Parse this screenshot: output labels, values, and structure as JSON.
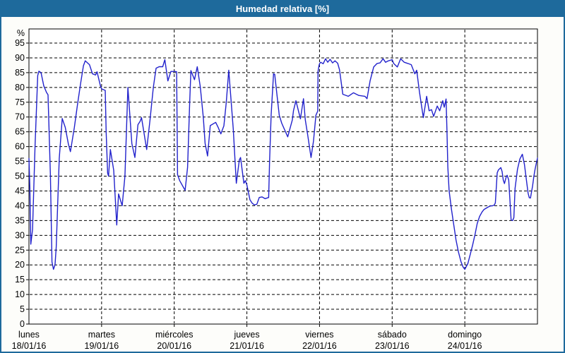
{
  "window": {
    "title": "Humedad relativa [%]"
  },
  "colors": {
    "titlebar_bg": "#1e6a9c",
    "titlebar_text": "#ffffff",
    "window_border": "#1e6a9c",
    "window_bg": "#fdfdfa",
    "plot_bg": "#ffffff",
    "frame": "#000000",
    "grid": "#000000",
    "series_line": "#2222cc",
    "label_text": "#000000"
  },
  "chart_data": {
    "type": "line",
    "title": "Humedad relativa [%]",
    "ylabel": "%",
    "ylim": [
      0,
      99.5
    ],
    "y_ticks": [
      0,
      5,
      10,
      15,
      20,
      25,
      30,
      35,
      40,
      45,
      50,
      55,
      60,
      65,
      70,
      75,
      80,
      85,
      90,
      95
    ],
    "xlim_hours": [
      0,
      168
    ],
    "x_unit": "hours over 7 days (hourly samples)",
    "grid": "dashed horizontal every 5%, dashed vertical at each day boundary",
    "legend": "none",
    "x_day_labels": [
      {
        "name": "lunes",
        "date": "18/01/16",
        "hour": 0
      },
      {
        "name": "martes",
        "date": "19/01/16",
        "hour": 24
      },
      {
        "name": "miércoles",
        "date": "20/01/16",
        "hour": 48
      },
      {
        "name": "jueves",
        "date": "21/01/16",
        "hour": 72
      },
      {
        "name": "viernes",
        "date": "22/01/16",
        "hour": 96
      },
      {
        "name": "sábado",
        "date": "23/01/16",
        "hour": 120
      },
      {
        "name": "domingo",
        "date": "24/01/16",
        "hour": 144
      }
    ],
    "series": [
      {
        "name": "Humedad relativa",
        "points": [
          [
            0,
            56
          ],
          [
            0.3,
            46
          ],
          [
            0.6,
            27
          ],
          [
            1.2,
            32
          ],
          [
            2,
            60
          ],
          [
            2.9,
            84
          ],
          [
            3.3,
            85.5
          ],
          [
            4,
            85
          ],
          [
            4.9,
            80.5
          ],
          [
            5.8,
            78.3
          ],
          [
            6.3,
            77.5
          ],
          [
            7.1,
            50
          ],
          [
            7.6,
            21
          ],
          [
            8.1,
            18.5
          ],
          [
            8.6,
            20
          ],
          [
            9,
            26
          ],
          [
            10,
            56
          ],
          [
            11,
            69.5
          ],
          [
            12,
            66.5
          ],
          [
            13,
            61
          ],
          [
            13.7,
            58.3
          ],
          [
            15,
            66.5
          ],
          [
            16,
            74
          ],
          [
            17,
            81
          ],
          [
            18,
            87.3
          ],
          [
            18.6,
            89
          ],
          [
            20,
            87.7
          ],
          [
            21,
            84.6
          ],
          [
            22,
            84.2
          ],
          [
            22.5,
            85.3
          ],
          [
            23.6,
            80.6
          ],
          [
            24,
            79.5
          ],
          [
            25.2,
            79
          ],
          [
            25.5,
            65
          ],
          [
            26,
            51
          ],
          [
            26.3,
            50
          ],
          [
            26.9,
            59
          ],
          [
            28,
            52
          ],
          [
            29,
            33.5
          ],
          [
            29.6,
            44
          ],
          [
            30.2,
            42
          ],
          [
            30.8,
            40
          ],
          [
            31.7,
            50
          ],
          [
            32.7,
            80
          ],
          [
            34,
            61
          ],
          [
            35,
            56.3
          ],
          [
            36,
            67.4
          ],
          [
            36.7,
            68.5
          ],
          [
            37.2,
            69.8
          ],
          [
            38.9,
            59
          ],
          [
            40,
            69
          ],
          [
            41.1,
            80
          ],
          [
            42,
            86.5
          ],
          [
            43,
            87
          ],
          [
            44.2,
            87
          ],
          [
            44.9,
            89.4
          ],
          [
            45.9,
            82.2
          ],
          [
            46.9,
            85.4
          ],
          [
            48,
            85.4
          ],
          [
            48.8,
            85.3
          ],
          [
            49.1,
            50.5
          ],
          [
            49.8,
            48.5
          ],
          [
            51.6,
            45.2
          ],
          [
            52.4,
            53
          ],
          [
            53.1,
            75
          ],
          [
            53.5,
            85.7
          ],
          [
            54.7,
            82.6
          ],
          [
            55.6,
            87
          ],
          [
            56.6,
            80.2
          ],
          [
            57.6,
            69.8
          ],
          [
            58.2,
            61.1
          ],
          [
            59,
            56.8
          ],
          [
            59.9,
            67.1
          ],
          [
            61.7,
            68.2
          ],
          [
            62.5,
            66.5
          ],
          [
            63.4,
            64.3
          ],
          [
            64.4,
            67
          ],
          [
            65.2,
            75
          ],
          [
            66,
            85.8
          ],
          [
            67.5,
            65.9
          ],
          [
            68.5,
            47.6
          ],
          [
            69.5,
            55.5
          ],
          [
            69.9,
            56.3
          ],
          [
            70.7,
            50
          ],
          [
            71,
            47.6
          ],
          [
            71.5,
            48.5
          ],
          [
            72,
            47
          ],
          [
            73,
            42
          ],
          [
            73.8,
            40.8
          ],
          [
            74.5,
            40.3
          ],
          [
            75.3,
            40.5
          ],
          [
            76.1,
            42.8
          ],
          [
            77,
            43
          ],
          [
            78,
            42.4
          ],
          [
            79.2,
            42.8
          ],
          [
            79.5,
            55
          ],
          [
            80,
            70.6
          ],
          [
            80.8,
            84.6
          ],
          [
            81.2,
            84.4
          ],
          [
            82,
            77
          ],
          [
            82.7,
            70.6
          ],
          [
            83.5,
            67.9
          ],
          [
            85.5,
            63.3
          ],
          [
            87,
            69
          ],
          [
            87.4,
            72.2
          ],
          [
            88.2,
            75.5
          ],
          [
            89.7,
            69.4
          ],
          [
            90.7,
            76.2
          ],
          [
            91.3,
            69
          ],
          [
            92.1,
            63.9
          ],
          [
            93.2,
            56.3
          ],
          [
            94,
            61.9
          ],
          [
            94.8,
            70.6
          ],
          [
            95.4,
            72
          ],
          [
            95.5,
            85.4
          ],
          [
            95.8,
            87.3
          ],
          [
            96,
            88
          ],
          [
            96.4,
            88.5
          ],
          [
            97.2,
            88
          ],
          [
            98,
            89.7
          ],
          [
            98.7,
            88.5
          ],
          [
            99.5,
            89.5
          ],
          [
            100.3,
            88.3
          ],
          [
            101.1,
            89
          ],
          [
            102,
            88.2
          ],
          [
            102.6,
            86
          ],
          [
            103.7,
            77.7
          ],
          [
            105.5,
            77
          ],
          [
            107.2,
            78.2
          ],
          [
            109,
            77.3
          ],
          [
            111,
            77
          ],
          [
            111.7,
            76.2
          ],
          [
            112.7,
            82.2
          ],
          [
            113.9,
            86.9
          ],
          [
            115,
            88.1
          ],
          [
            116,
            88.3
          ],
          [
            117,
            89.7
          ],
          [
            117.8,
            88.5
          ],
          [
            118.5,
            88.9
          ],
          [
            120,
            89.4
          ],
          [
            120.5,
            88.1
          ],
          [
            121.7,
            86.9
          ],
          [
            122.8,
            89.7
          ],
          [
            124,
            88.5
          ],
          [
            125.2,
            88.1
          ],
          [
            126.3,
            87.7
          ],
          [
            127.5,
            84.6
          ],
          [
            128.1,
            85.8
          ],
          [
            129,
            78.5
          ],
          [
            130.3,
            69.8
          ],
          [
            131.4,
            77
          ],
          [
            132.2,
            72.1
          ],
          [
            133,
            72.5
          ],
          [
            133.7,
            70.2
          ],
          [
            134.9,
            73.7
          ],
          [
            135.7,
            72.1
          ],
          [
            136.7,
            75.5
          ],
          [
            137.2,
            73.3
          ],
          [
            137.8,
            76.1
          ],
          [
            138.1,
            65
          ],
          [
            138.4,
            53.1
          ],
          [
            138.8,
            45.1
          ],
          [
            139.6,
            38.7
          ],
          [
            140.4,
            33.2
          ],
          [
            141.1,
            28.4
          ],
          [
            141.9,
            24.4
          ],
          [
            142.7,
            21.2
          ],
          [
            143.4,
            19.3
          ],
          [
            144,
            18.5
          ],
          [
            145,
            20.4
          ],
          [
            145.8,
            23.6
          ],
          [
            146.6,
            26.8
          ],
          [
            147.4,
            30.4
          ],
          [
            148.1,
            34
          ],
          [
            148.9,
            36.4
          ],
          [
            149.7,
            37.9
          ],
          [
            150.3,
            38.7
          ],
          [
            151.6,
            39.5
          ],
          [
            152.4,
            39.9
          ],
          [
            153.2,
            40
          ],
          [
            153.8,
            40.3
          ],
          [
            154.1,
            41
          ],
          [
            154.7,
            51.1
          ],
          [
            155.1,
            52.1
          ],
          [
            155.9,
            52.9
          ],
          [
            156.3,
            51.6
          ],
          [
            156.7,
            48.7
          ],
          [
            157.1,
            47.5
          ],
          [
            157.7,
            49.9
          ],
          [
            158,
            50.3
          ],
          [
            158.5,
            48.7
          ],
          [
            158.9,
            42
          ],
          [
            159.3,
            35.2
          ],
          [
            159.8,
            35
          ],
          [
            160.2,
            36
          ],
          [
            160.6,
            45.9
          ],
          [
            161.4,
            52.3
          ],
          [
            162.2,
            55.8
          ],
          [
            163,
            57.4
          ],
          [
            163.7,
            53.9
          ],
          [
            164.1,
            50.7
          ],
          [
            164.9,
            44.3
          ],
          [
            165.3,
            42.7
          ],
          [
            165.7,
            42.6
          ],
          [
            166.4,
            46.7
          ],
          [
            166.8,
            49.9
          ],
          [
            167.2,
            52.3
          ],
          [
            167.6,
            54.3
          ],
          [
            168,
            56.1
          ]
        ]
      }
    ]
  }
}
